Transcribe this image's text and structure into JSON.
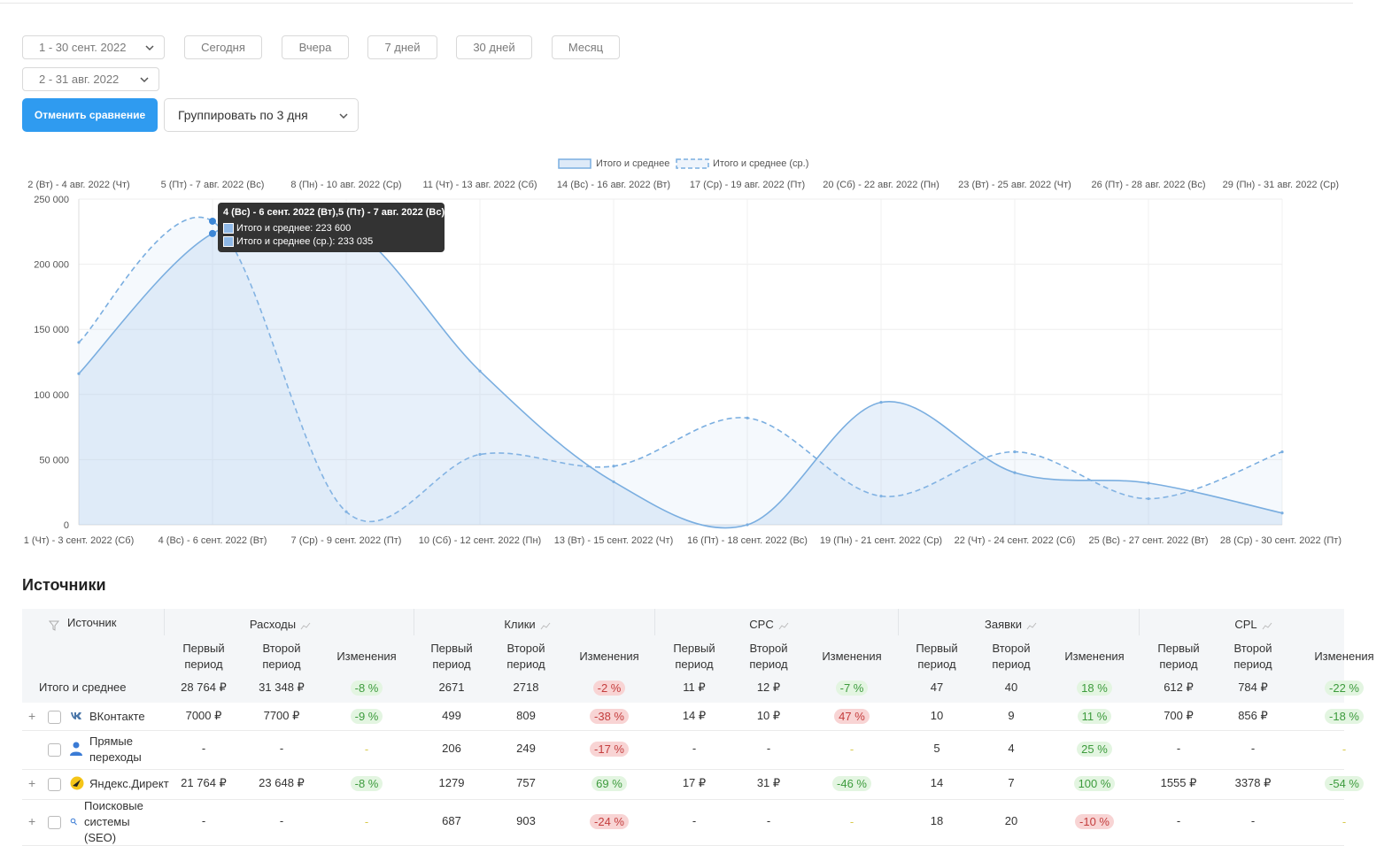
{
  "filters": {
    "period_main": "1 - 30 сент. 2022",
    "period_compare": "2 - 31 авг. 2022",
    "quick": [
      "Сегодня",
      "Вчера",
      "7 дней",
      "30 дней",
      "Месяц"
    ],
    "cancel_compare": "Отменить сравнение",
    "group_by": "Группировать по 3 дня"
  },
  "chart_data": {
    "type": "area",
    "legend": [
      "Итого и среднее",
      "Итого и среднее (ср.)"
    ],
    "legend_position": "top-center",
    "x_bottom": [
      "1 (Чт) - 3 сент. 2022 (Сб)",
      "4 (Вс) - 6 сент. 2022 (Вт)",
      "7 (Ср) - 9 сент. 2022 (Пт)",
      "10 (Сб) - 12 сент. 2022 (Пн)",
      "13 (Вт) - 15 сент. 2022 (Чт)",
      "16 (Пт) - 18 сент. 2022 (Вс)",
      "19 (Пн) - 21 сент. 2022 (Ср)",
      "22 (Чт) - 24 сент. 2022 (Сб)",
      "25 (Вс) - 27 сент. 2022 (Вт)",
      "28 (Ср) - 30 сент. 2022 (Пт)"
    ],
    "x_top": [
      "2 (Вт) - 4 авг. 2022 (Чт)",
      "5 (Пт) - 7 авг. 2022 (Вс)",
      "8 (Пн) - 10 авг. 2022 (Ср)",
      "11 (Чт) - 13 авг. 2022 (Сб)",
      "14 (Вс) - 16 авг. 2022 (Вт)",
      "17 (Ср) - 19 авг. 2022 (Пт)",
      "20 (Сб) - 22 авг. 2022 (Пн)",
      "23 (Вт) - 25 авг. 2022 (Чт)",
      "26 (Пт) - 28 авг. 2022 (Вс)",
      "29 (Пн) - 31 авг. 2022 (Ср)"
    ],
    "y_ticks": [
      "0",
      "50 000",
      "100 000",
      "150 000",
      "200 000",
      "250 000"
    ],
    "ylim": [
      0,
      250000
    ],
    "series": [
      {
        "name": "Итого и среднее",
        "style": "solid",
        "color": "#7aaee0",
        "values": [
          116000,
          223600,
          230000,
          118000,
          33000,
          0,
          94000,
          40000,
          32000,
          9000
        ]
      },
      {
        "name": "Итого и среднее (ср.)",
        "style": "dashed",
        "color": "#7aaee0",
        "values": [
          140000,
          233035,
          10000,
          54000,
          45000,
          82000,
          22000,
          56000,
          20000,
          56000
        ]
      }
    ],
    "tooltip": {
      "title": "4 (Вс) - 6 сент. 2022 (Вт),5 (Пт) - 7 авг. 2022 (Вс)",
      "line1": "Итого и среднее: 223 600",
      "line2": "Итого и среднее (ср.): 233 035"
    }
  },
  "sources": {
    "title": "Источники",
    "source_col": "Источник",
    "groups": [
      "Расходы",
      "Клики",
      "CPC",
      "Заявки",
      "CPL"
    ],
    "sub": {
      "first": [
        "Первый",
        "период"
      ],
      "second": [
        "Второй",
        "период"
      ],
      "change": "Изменения"
    },
    "total": {
      "label": "Итого и среднее",
      "values": [
        "28 764 ₽",
        "31 348 ₽",
        "-8 %",
        "2671",
        "2718",
        "-2 %",
        "11 ₽",
        "12 ₽",
        "-7 %",
        "47",
        "40",
        "18 %",
        "612 ₽",
        "784 ₽",
        "-22 %"
      ],
      "tones": [
        "",
        "",
        "pos",
        "",
        "",
        "neg",
        "",
        "",
        "pos",
        "",
        "",
        "pos",
        "",
        "",
        "pos"
      ]
    },
    "rows": [
      {
        "name": [
          "ВКонтакте"
        ],
        "icon": "vk-icon",
        "expand": true,
        "values": [
          "7000 ₽",
          "7700 ₽",
          "-9 %",
          "499",
          "809",
          "-38 %",
          "14 ₽",
          "10 ₽",
          "47 %",
          "10",
          "9",
          "11 %",
          "700 ₽",
          "856 ₽",
          "-18 %"
        ],
        "tones": [
          "",
          "",
          "pos",
          "",
          "",
          "neg",
          "",
          "",
          "neg",
          "",
          "",
          "pos",
          "",
          "",
          "pos"
        ]
      },
      {
        "name": [
          "Прямые",
          "переходы"
        ],
        "icon": "person-icon",
        "expand": false,
        "values": [
          "-",
          "-",
          "-",
          "206",
          "249",
          "-17 %",
          "-",
          "-",
          "-",
          "5",
          "4",
          "25 %",
          "-",
          "-",
          "-"
        ],
        "tones": [
          "",
          "",
          "neu",
          "",
          "",
          "neg",
          "",
          "",
          "neu",
          "",
          "",
          "pos",
          "",
          "",
          "neu"
        ]
      },
      {
        "name": [
          "Яндекс.Директ"
        ],
        "icon": "yandex-direct-icon",
        "expand": true,
        "values": [
          "21 764 ₽",
          "23 648 ₽",
          "-8 %",
          "1279",
          "757",
          "69 %",
          "17 ₽",
          "31 ₽",
          "-46 %",
          "14",
          "7",
          "100 %",
          "1555 ₽",
          "3378 ₽",
          "-54 %"
        ],
        "tones": [
          "",
          "",
          "pos",
          "",
          "",
          "pos",
          "",
          "",
          "pos",
          "",
          "",
          "pos",
          "",
          "",
          "pos"
        ]
      },
      {
        "name": [
          "Поисковые",
          "системы",
          "(SEO)"
        ],
        "icon": "search-icon",
        "expand": true,
        "values": [
          "-",
          "-",
          "-",
          "687",
          "903",
          "-24 %",
          "-",
          "-",
          "-",
          "18",
          "20",
          "-10 %",
          "-",
          "-",
          "-"
        ],
        "tones": [
          "",
          "",
          "neu",
          "",
          "",
          "neg",
          "",
          "",
          "neu",
          "",
          "",
          "neg",
          "",
          "",
          "neu"
        ]
      }
    ]
  }
}
